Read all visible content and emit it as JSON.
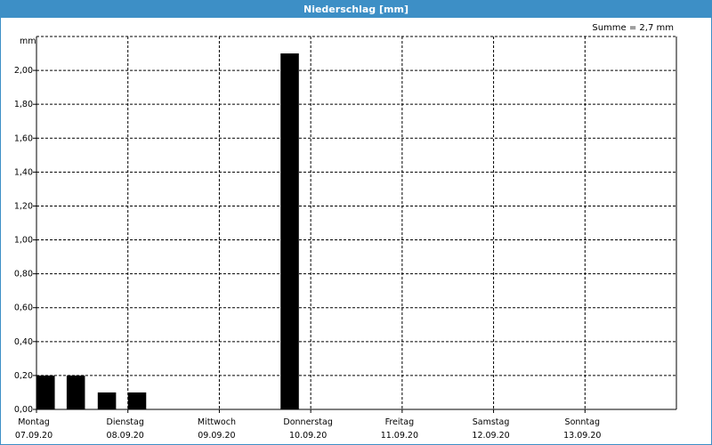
{
  "title": "Niederschlag [mm]",
  "summary": "Summe = 2,7 mm",
  "chart_data": {
    "type": "bar",
    "title": "Niederschlag [mm]",
    "ylabel": "mm",
    "ylim": [
      0,
      2.2
    ],
    "yticks": [
      "0,00",
      "0,20",
      "0,40",
      "0,60",
      "0,80",
      "1,00",
      "1,20",
      "1,40",
      "1,60",
      "1,80",
      "2,00"
    ],
    "xlim_days": [
      0,
      7
    ],
    "days": [
      {
        "name": "Montag",
        "date": "07.09.20"
      },
      {
        "name": "Dienstag",
        "date": "08.09.20"
      },
      {
        "name": "Mittwoch",
        "date": "09.09.20"
      },
      {
        "name": "Donnerstag",
        "date": "10.09.20"
      },
      {
        "name": "Freitag",
        "date": "11.09.20"
      },
      {
        "name": "Samstag",
        "date": "12.09.20"
      },
      {
        "name": "Sonntag",
        "date": "13.09.20"
      }
    ],
    "bars": [
      {
        "x": 0.1,
        "value": 0.2
      },
      {
        "x": 0.43,
        "value": 0.2
      },
      {
        "x": 0.77,
        "value": 0.1
      },
      {
        "x": 1.1,
        "value": 0.1
      },
      {
        "x": 2.77,
        "value": 2.1
      }
    ],
    "grid": true,
    "bar_color": "#000000",
    "header_color": "#3d8fc6"
  }
}
